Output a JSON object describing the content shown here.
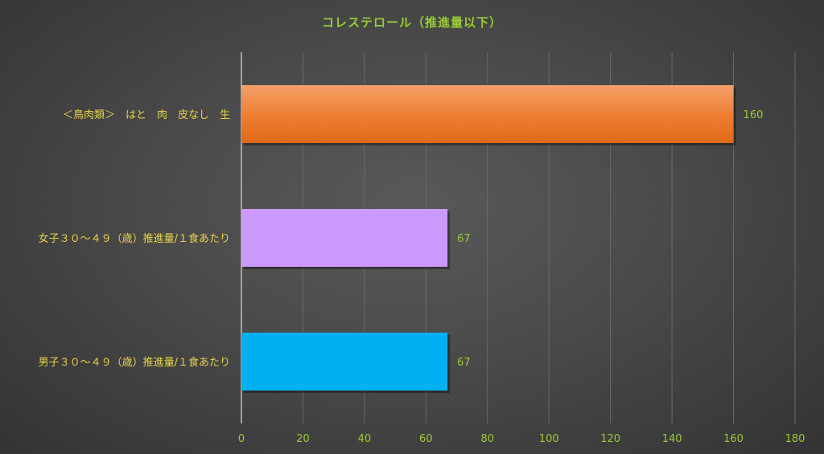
{
  "chart_data": {
    "type": "bar",
    "orientation": "horizontal",
    "title": "コレステロール（推進量以下）",
    "categories": [
      "＜鳥肉類＞　はと　肉　皮なし　生",
      "女子３０～４９（歳）推進量/１食あたり",
      "男子３０～４９（歳）推進量/１食あたり"
    ],
    "values": [
      160,
      67,
      67
    ],
    "colors": [
      "#ed7d31",
      "#cc99ff",
      "#00b0f0"
    ],
    "xlim": [
      0,
      180
    ],
    "xticks": [
      0,
      20,
      40,
      60,
      80,
      100,
      120,
      140,
      160,
      180
    ],
    "grid": true,
    "legend": "none"
  }
}
